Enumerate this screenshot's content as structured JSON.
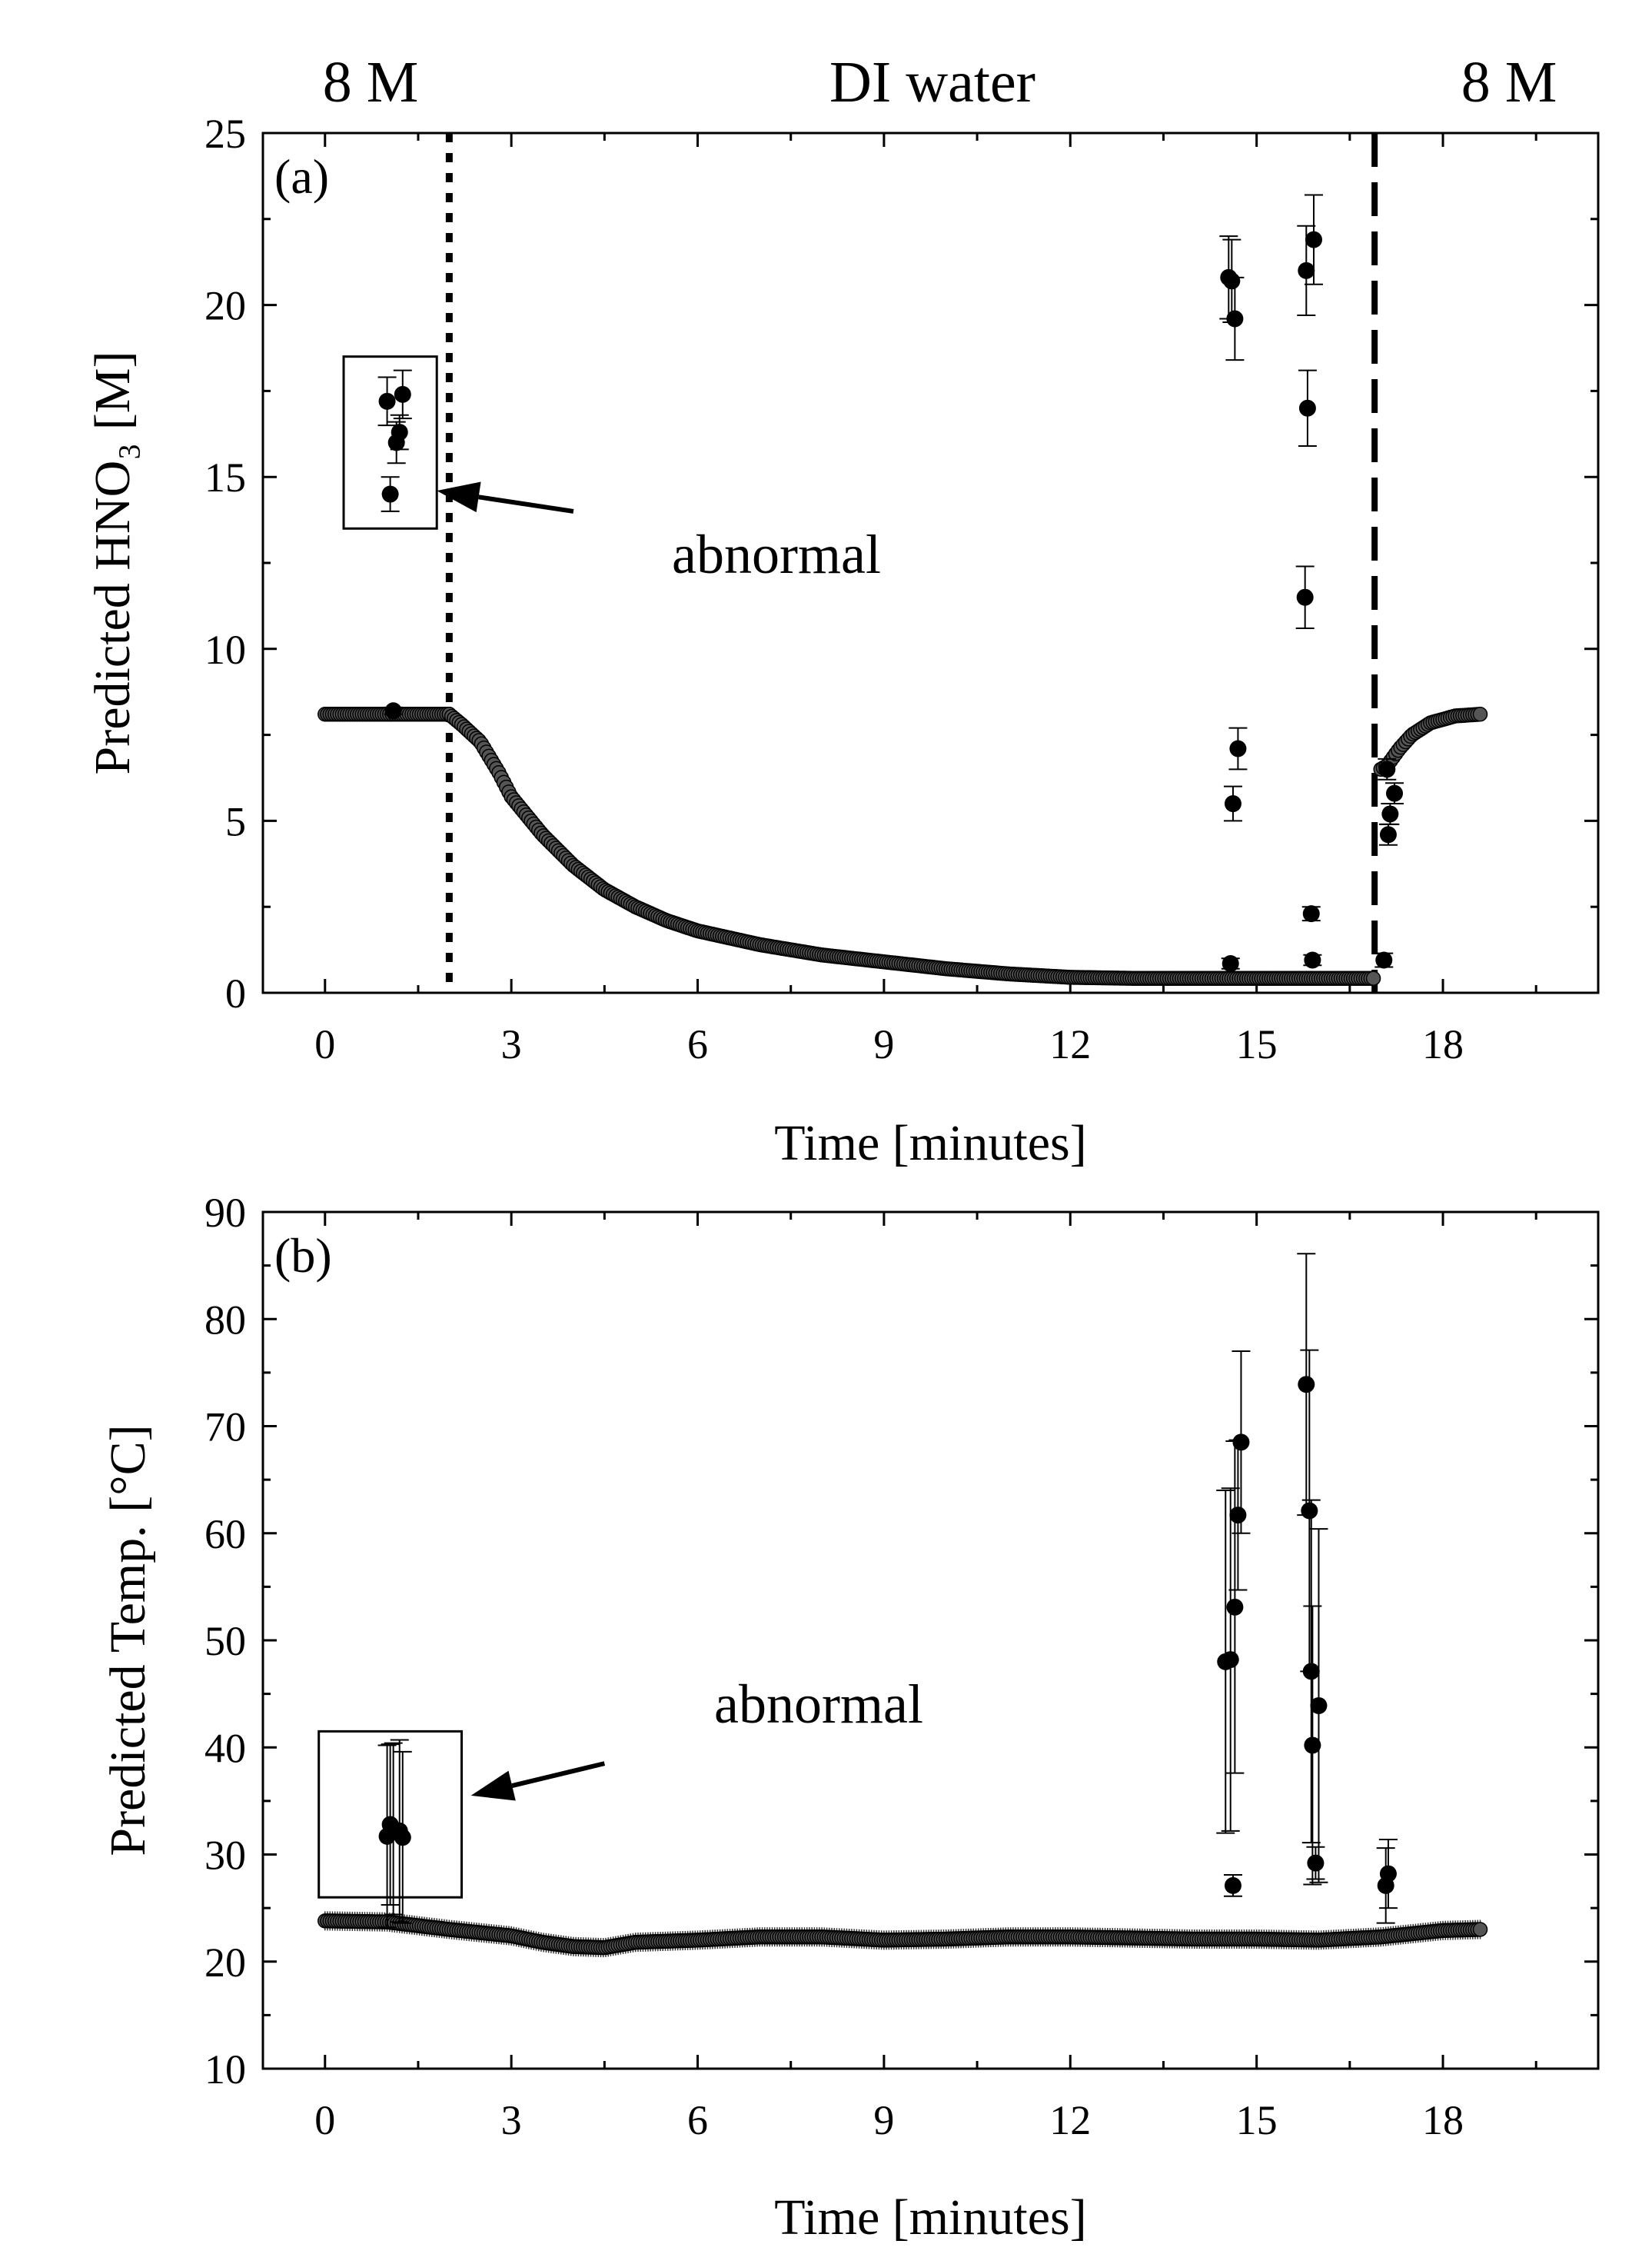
{
  "phase_labels": {
    "left": "8 M",
    "middle": "DI water",
    "right": "8 M"
  },
  "annotations": {
    "a": "abnormal",
    "b": "abnormal"
  },
  "chart_data": [
    {
      "type": "scatter",
      "panel_label": "(a)",
      "xlabel": "Time [minutes]",
      "ylabel": "Predicted HNO₃ [M]",
      "xlim": [
        -1,
        20.5
      ],
      "ylim": [
        0,
        25
      ],
      "xticks": [
        0,
        3,
        6,
        9,
        12,
        15,
        18
      ],
      "yticks": [
        0,
        5,
        10,
        15,
        20,
        25
      ],
      "vlines": [
        {
          "x": 2.0,
          "style": "dotted"
        },
        {
          "x": 16.9,
          "style": "dashed"
        }
      ],
      "annotation_box": {
        "x": [
          0.3,
          1.8
        ],
        "y": [
          13.5,
          18.5
        ]
      },
      "annotation_arrow": {
        "from": [
          4.0,
          14.0
        ],
        "to": [
          1.8,
          14.6
        ]
      },
      "main_series": {
        "segments": [
          {
            "from": 0.0,
            "to": 2.0,
            "values": [
              [
                0.0,
                8.1
              ],
              [
                2.0,
                8.1
              ]
            ],
            "step": 0.04,
            "err": 0.05
          },
          {
            "from": 2.0,
            "to": 16.9,
            "values": [
              [
                2.0,
                8.1
              ],
              [
                2.2,
                7.8
              ],
              [
                2.5,
                7.3
              ],
              [
                2.8,
                6.4
              ],
              [
                3.0,
                5.7
              ],
              [
                3.5,
                4.6
              ],
              [
                4.0,
                3.7
              ],
              [
                4.5,
                3.0
              ],
              [
                5.0,
                2.5
              ],
              [
                5.5,
                2.1
              ],
              [
                6.0,
                1.8
              ],
              [
                7.0,
                1.4
              ],
              [
                8.0,
                1.1
              ],
              [
                9.0,
                0.9
              ],
              [
                10.0,
                0.7
              ],
              [
                11.0,
                0.55
              ],
              [
                12.0,
                0.45
              ],
              [
                13.0,
                0.42
              ],
              [
                14.0,
                0.42
              ],
              [
                15.0,
                0.42
              ],
              [
                16.0,
                0.42
              ],
              [
                16.9,
                0.42
              ]
            ],
            "step": 0.04,
            "err": 0.08
          },
          {
            "from": 17.0,
            "to": 18.6,
            "values": [
              [
                17.0,
                6.5
              ],
              [
                17.1,
                6.6
              ],
              [
                17.3,
                7.1
              ],
              [
                17.5,
                7.5
              ],
              [
                17.8,
                7.85
              ],
              [
                18.2,
                8.05
              ],
              [
                18.6,
                8.1
              ]
            ],
            "step": 0.04,
            "err": 0.1
          }
        ]
      },
      "outliers": [
        {
          "x": 1.0,
          "y": 17.2,
          "err": 0.7
        },
        {
          "x": 1.05,
          "y": 14.5,
          "err": 0.5
        },
        {
          "x": 1.15,
          "y": 16.0,
          "err": 0.6
        },
        {
          "x": 1.2,
          "y": 16.3,
          "err": 0.5
        },
        {
          "x": 1.25,
          "y": 17.4,
          "err": 0.7
        },
        {
          "x": 1.1,
          "y": 8.2,
          "err": 0.1
        },
        {
          "x": 14.55,
          "y": 20.8,
          "err": 1.2
        },
        {
          "x": 14.6,
          "y": 20.7,
          "err": 1.2
        },
        {
          "x": 14.65,
          "y": 19.6,
          "err": 1.2
        },
        {
          "x": 14.7,
          "y": 7.1,
          "err": 0.6
        },
        {
          "x": 14.62,
          "y": 5.5,
          "err": 0.5
        },
        {
          "x": 14.58,
          "y": 0.85,
          "err": 0.15
        },
        {
          "x": 15.8,
          "y": 21.0,
          "err": 1.3
        },
        {
          "x": 15.92,
          "y": 21.9,
          "err": 1.3
        },
        {
          "x": 15.82,
          "y": 17.0,
          "err": 1.1
        },
        {
          "x": 15.78,
          "y": 11.5,
          "err": 0.9
        },
        {
          "x": 15.88,
          "y": 2.3,
          "err": 0.2
        },
        {
          "x": 15.9,
          "y": 0.95,
          "err": 0.15
        },
        {
          "x": 17.05,
          "y": 0.95,
          "err": 0.2
        },
        {
          "x": 17.1,
          "y": 6.5,
          "err": 0.3
        },
        {
          "x": 17.15,
          "y": 5.2,
          "err": 0.3
        },
        {
          "x": 17.12,
          "y": 4.6,
          "err": 0.3
        },
        {
          "x": 17.22,
          "y": 5.8,
          "err": 0.3
        }
      ]
    },
    {
      "type": "scatter",
      "panel_label": "(b)",
      "xlabel": "Time [minutes]",
      "ylabel": "Predicted Temp. [°C]",
      "xlim": [
        -1,
        20.5
      ],
      "ylim": [
        10,
        90
      ],
      "xticks": [
        0,
        3,
        6,
        9,
        12,
        15,
        18
      ],
      "yticks": [
        10,
        20,
        30,
        40,
        50,
        60,
        70,
        80,
        90
      ],
      "annotation_box": {
        "x": [
          -0.1,
          2.2
        ],
        "y": [
          26.0,
          41.5
        ]
      },
      "annotation_arrow": {
        "from": [
          4.5,
          38.5
        ],
        "to": [
          2.35,
          35.5
        ]
      },
      "main_series": {
        "segments": [
          {
            "from": 0.0,
            "to": 18.6,
            "values": [
              [
                0.0,
                23.8
              ],
              [
                1.0,
                23.7
              ],
              [
                2.0,
                23.0
              ],
              [
                3.0,
                22.4
              ],
              [
                3.5,
                21.8
              ],
              [
                4.0,
                21.4
              ],
              [
                4.5,
                21.3
              ],
              [
                5.0,
                21.8
              ],
              [
                6.0,
                22.0
              ],
              [
                7.0,
                22.3
              ],
              [
                8.0,
                22.3
              ],
              [
                9.0,
                22.0
              ],
              [
                10.0,
                22.1
              ],
              [
                11.0,
                22.3
              ],
              [
                12.0,
                22.3
              ],
              [
                13.0,
                22.2
              ],
              [
                14.0,
                22.1
              ],
              [
                15.0,
                22.1
              ],
              [
                16.0,
                22.0
              ],
              [
                17.0,
                22.3
              ],
              [
                18.0,
                22.9
              ],
              [
                18.6,
                23.0
              ]
            ],
            "step": 0.04,
            "err": 0.9
          }
        ]
      },
      "outliers": [
        {
          "x": 1.0,
          "y": 31.7,
          "err": 8.5
        },
        {
          "x": 1.05,
          "y": 32.8,
          "err": 7.5
        },
        {
          "x": 1.1,
          "y": 32.4,
          "err": 8.0
        },
        {
          "x": 1.2,
          "y": 32.2,
          "err": 8.5
        },
        {
          "x": 1.25,
          "y": 31.6,
          "err": 8.0
        },
        {
          "x": 14.5,
          "y": 48.0,
          "err": 16.0
        },
        {
          "x": 14.58,
          "y": 48.2,
          "err": 16.0
        },
        {
          "x": 14.62,
          "y": 27.1,
          "err": 1.0
        },
        {
          "x": 14.65,
          "y": 53.1,
          "err": 15.5
        },
        {
          "x": 14.7,
          "y": 61.7,
          "err": 7.0
        },
        {
          "x": 14.75,
          "y": 68.5,
          "err": 8.5
        },
        {
          "x": 15.8,
          "y": 73.9,
          "err": 12.2
        },
        {
          "x": 15.85,
          "y": 62.1,
          "err": 15.0
        },
        {
          "x": 15.88,
          "y": 47.1,
          "err": 16.0
        },
        {
          "x": 15.9,
          "y": 40.2,
          "err": 13.0
        },
        {
          "x": 15.95,
          "y": 29.2,
          "err": 1.5
        },
        {
          "x": 16.0,
          "y": 43.9,
          "err": 16.5
        },
        {
          "x": 17.08,
          "y": 27.1,
          "err": 3.5
        },
        {
          "x": 17.12,
          "y": 28.2,
          "err": 3.2
        }
      ]
    }
  ]
}
